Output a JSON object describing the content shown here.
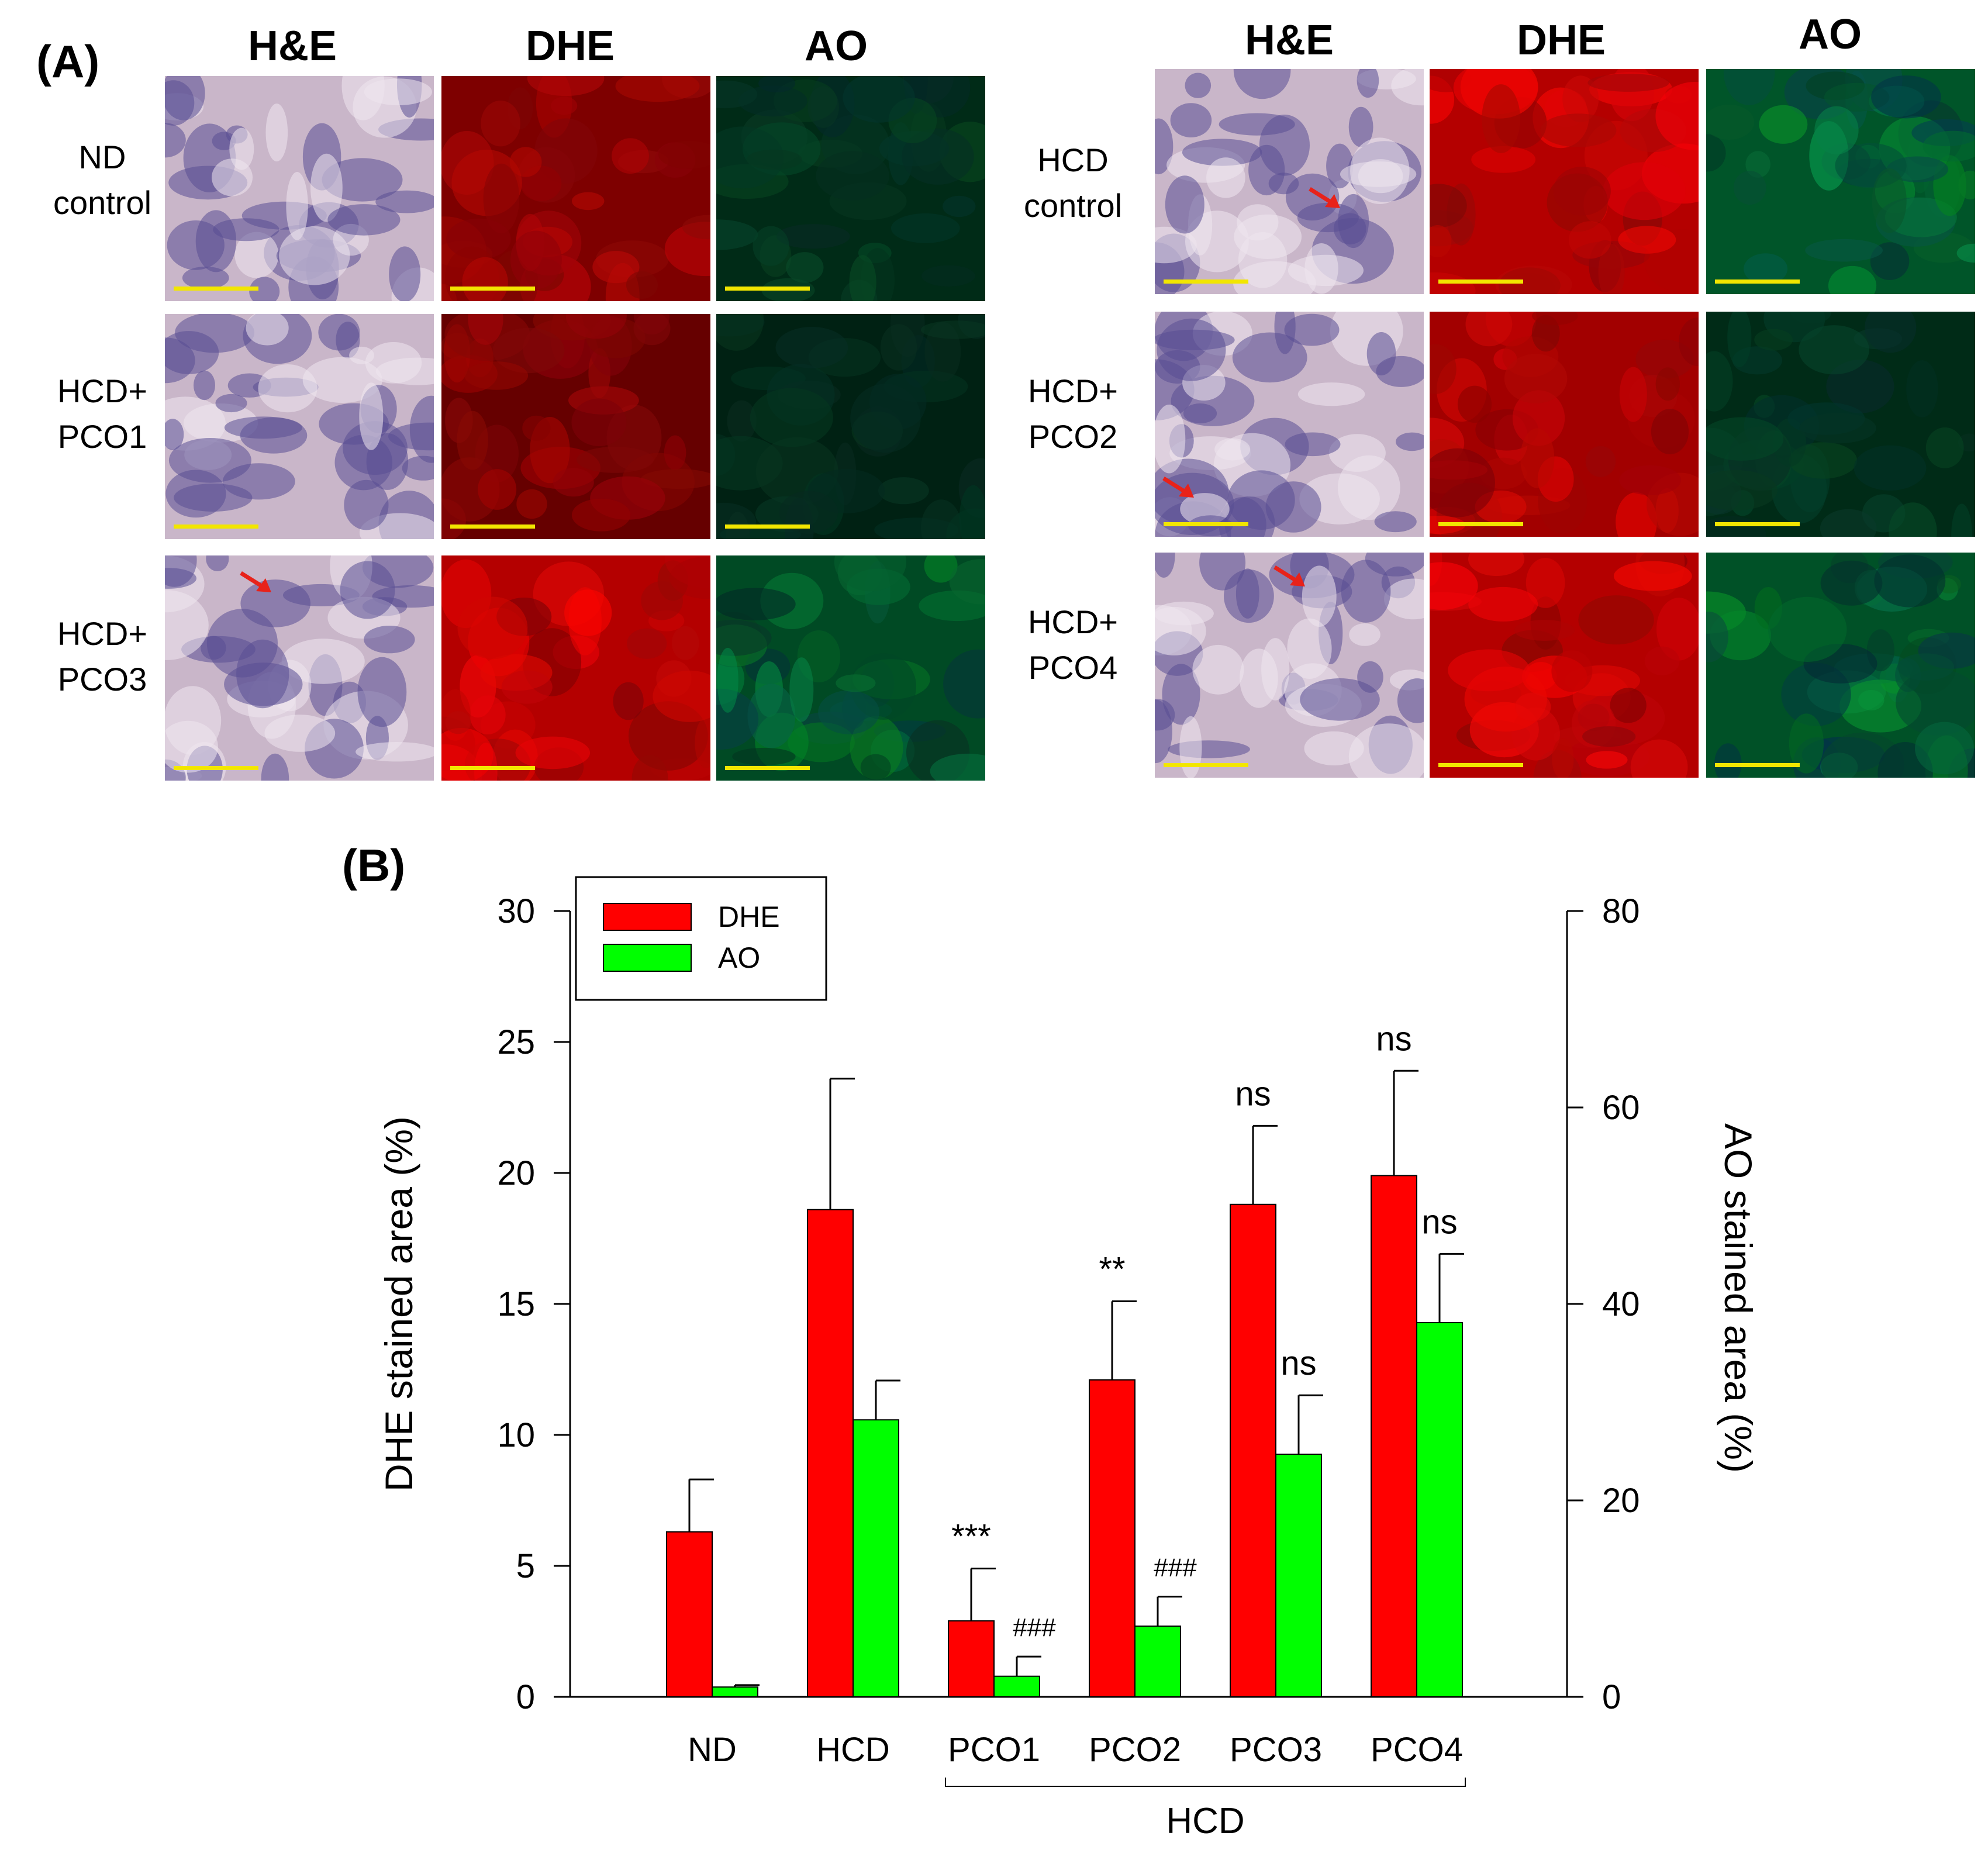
{
  "panel_a": {
    "label": "(A)",
    "left_columns": [
      "H&E",
      "DHE",
      "AO"
    ],
    "right_columns": [
      "H&E",
      "DHE",
      "AO"
    ],
    "left_rows": [
      "ND\ncontrol",
      "HCD+\nPCO1",
      "HCD+\nPCO3"
    ],
    "right_rows": [
      "HCD\ncontrol",
      "HCD+\nPCO2",
      "HCD+\nPCO4"
    ]
  },
  "panel_b": {
    "label": "(B)",
    "group_label": "HCD"
  },
  "colors": {
    "dhe": "#ff0000",
    "ao": "#00ff00",
    "he_bg": "#c9b6c9",
    "he_dark": "#5a4f93",
    "scale_bar": "#f2e600",
    "arrow": "#e8221a"
  },
  "chart_data": {
    "type": "bar",
    "categories": [
      "ND",
      "HCD",
      "PCO1",
      "PCO2",
      "PCO3",
      "PCO4"
    ],
    "series": [
      {
        "name": "DHE",
        "axis": "left",
        "values": [
          6.3,
          18.6,
          2.9,
          12.1,
          18.8,
          19.9
        ],
        "errors": [
          2.0,
          5.0,
          2.0,
          3.0,
          3.0,
          4.0
        ]
      },
      {
        "name": "AO",
        "axis": "right",
        "values": [
          1.0,
          28.2,
          2.1,
          7.2,
          24.7,
          38.1
        ],
        "errors": [
          0.2,
          4.0,
          2.0,
          3.0,
          6.0,
          7.0
        ]
      }
    ],
    "annotations": {
      "DHE": [
        "",
        "",
        "***",
        "**",
        "ns",
        "ns"
      ],
      "AO": [
        "",
        "",
        "###",
        "###",
        "ns",
        "ns"
      ]
    },
    "ylabel_left": "DHE stained area (%)",
    "ylabel_right": "AO stained area (%)",
    "ylim_left": [
      0,
      30
    ],
    "ylim_right": [
      0,
      80
    ],
    "yticks_left": [
      "0",
      "5",
      "10",
      "15",
      "20",
      "25",
      "30"
    ],
    "yticks_right": [
      "0",
      "20",
      "40",
      "60",
      "80"
    ],
    "legend": [
      "DHE",
      "AO"
    ],
    "legend_position": "top-left"
  }
}
